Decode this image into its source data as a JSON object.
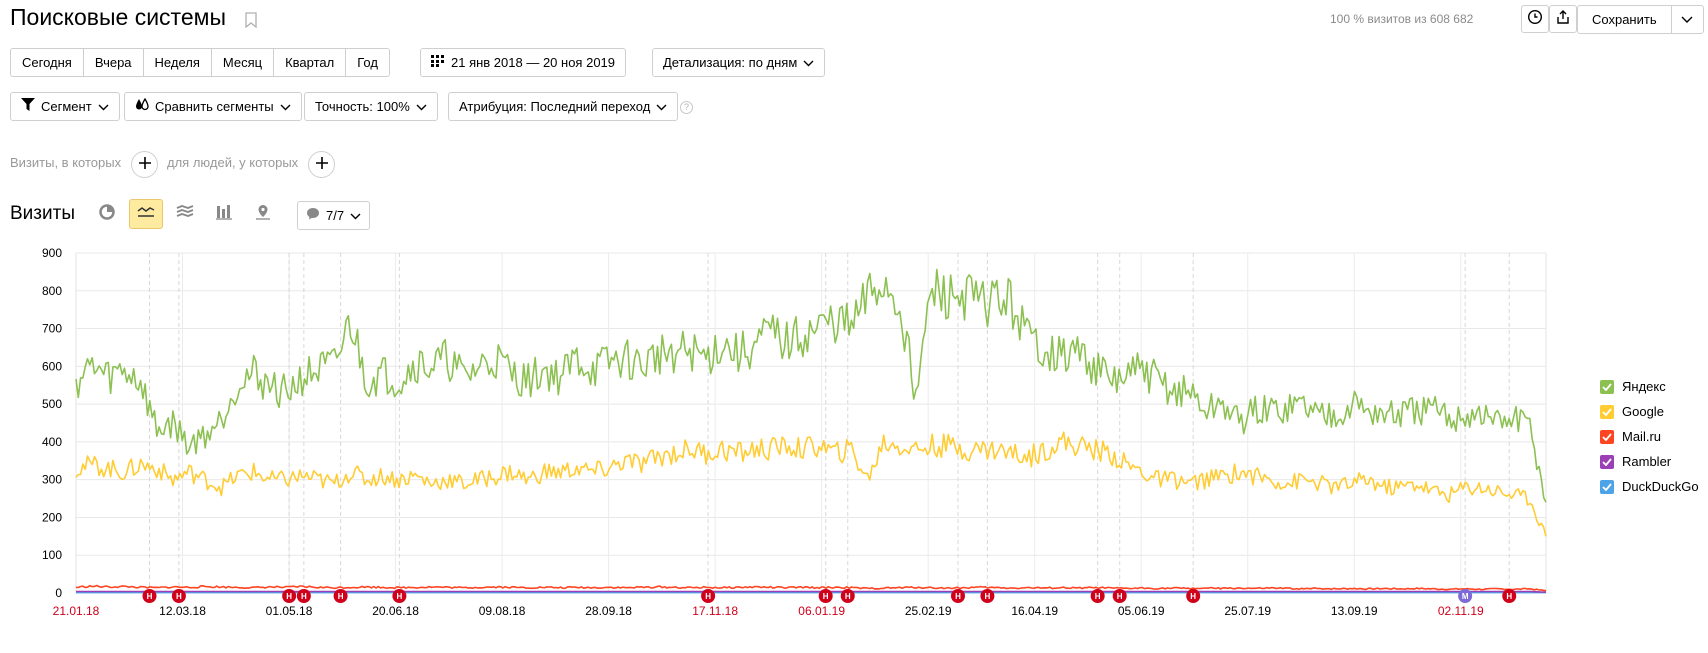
{
  "header": {
    "title": "Поисковые системы",
    "visits_info": "100 % визитов из 608 682",
    "save_label": "Сохранить"
  },
  "periods": [
    "Сегодня",
    "Вчера",
    "Неделя",
    "Месяц",
    "Квартал",
    "Год"
  ],
  "date_range": "21 янв 2018 — 20 ноя 2019",
  "detail": "Детализация: по дням",
  "filters": {
    "segment": "Сегмент",
    "compare": "Сравнить сегменты",
    "accuracy": "Точность: 100%",
    "attribution": "Атрибуция: Последний переход",
    "help": "?"
  },
  "conditions": {
    "visits_label": "Визиты, в которых",
    "people_label": "для людей, у которых"
  },
  "section": {
    "title": "Визиты",
    "notes_count": "7/7"
  },
  "colors": {
    "yandex": "#8cc152",
    "google": "#ffcc33",
    "mailru": "#ff4422",
    "rambler": "#9b3fb6",
    "duckduckgo": "#4da3e8",
    "holiday": "#d0021b"
  },
  "chart_data": {
    "type": "line",
    "ylim": [
      0,
      900
    ],
    "yticks": [
      0,
      100,
      200,
      300,
      400,
      500,
      600,
      700,
      800,
      900
    ],
    "xticks": [
      {
        "label": "21.01.18",
        "holiday": true
      },
      {
        "label": "12.03.18",
        "holiday": false
      },
      {
        "label": "01.05.18",
        "holiday": false
      },
      {
        "label": "20.06.18",
        "holiday": false
      },
      {
        "label": "09.08.18",
        "holiday": false
      },
      {
        "label": "28.09.18",
        "holiday": false
      },
      {
        "label": "17.11.18",
        "holiday": true
      },
      {
        "label": "06.01.19",
        "holiday": true
      },
      {
        "label": "25.02.19",
        "holiday": false
      },
      {
        "label": "16.04.19",
        "holiday": false
      },
      {
        "label": "05.06.19",
        "holiday": false
      },
      {
        "label": "25.07.19",
        "holiday": false
      },
      {
        "label": "13.09.19",
        "holiday": false
      },
      {
        "label": "02.11.19",
        "holiday": true
      }
    ],
    "series": [
      {
        "name": "Яндекс",
        "color": "#8cc152",
        "values": [
          560,
          600,
          570,
          590,
          560,
          430,
          450,
          390,
          420,
          460,
          560,
          580,
          550,
          530,
          570,
          590,
          600,
          720,
          560,
          580,
          560,
          610,
          600,
          620,
          570,
          600,
          620,
          580,
          560,
          590,
          570,
          620,
          590,
          610,
          620,
          600,
          630,
          640,
          640,
          620,
          660,
          630,
          650,
          690,
          660,
          680,
          700,
          720,
          700,
          780,
          820,
          760,
          530,
          800,
          780,
          790,
          760,
          780,
          760,
          670,
          650,
          620,
          640,
          600,
          560,
          570,
          590,
          560,
          530,
          530,
          480,
          500,
          450,
          480,
          480,
          490,
          500,
          470,
          480,
          500,
          480,
          470,
          470,
          480,
          480,
          460,
          470,
          470,
          450,
          460,
          440,
          240
        ]
      },
      {
        "name": "Google",
        "color": "#ffcc33",
        "values": [
          330,
          340,
          330,
          320,
          340,
          330,
          300,
          320,
          300,
          280,
          310,
          320,
          300,
          300,
          310,
          300,
          290,
          320,
          300,
          310,
          300,
          310,
          290,
          300,
          290,
          300,
          310,
          320,
          300,
          320,
          320,
          330,
          320,
          330,
          350,
          340,
          360,
          370,
          380,
          370,
          380,
          370,
          380,
          380,
          390,
          380,
          390,
          370,
          380,
          300,
          400,
          390,
          380,
          390,
          390,
          380,
          380,
          380,
          370,
          360,
          380,
          400,
          390,
          380,
          370,
          340,
          320,
          300,
          300,
          290,
          300,
          310,
          320,
          310,
          300,
          290,
          300,
          290,
          280,
          290,
          300,
          280,
          280,
          290,
          270,
          260,
          280,
          280,
          270,
          260,
          250,
          150
        ]
      },
      {
        "name": "Mail.ru",
        "color": "#ff4422",
        "values": [
          15,
          18,
          16,
          17,
          15,
          14,
          16,
          15,
          17,
          16,
          15,
          14,
          16,
          15,
          17,
          15,
          14,
          15,
          16,
          15,
          14,
          15,
          16,
          15,
          14,
          15,
          16,
          15,
          14,
          15,
          14,
          15,
          14,
          15,
          14,
          15,
          16,
          15,
          14,
          15,
          14,
          15,
          16,
          15,
          14,
          15,
          14,
          15,
          14,
          12,
          13,
          14,
          15,
          14,
          13,
          14,
          15,
          14,
          13,
          14,
          13,
          14,
          13,
          14,
          13,
          12,
          13,
          12,
          13,
          12,
          13,
          12,
          13,
          12,
          13,
          12,
          11,
          12,
          11,
          12,
          11,
          12,
          11,
          12,
          11,
          10,
          11,
          10,
          11,
          10,
          11,
          6
        ]
      },
      {
        "name": "Rambler",
        "color": "#9b3fb6",
        "values": [
          4,
          4,
          4,
          4,
          4,
          4,
          4,
          4,
          4,
          4,
          4,
          4,
          4,
          4,
          4,
          4,
          4,
          4,
          4,
          4,
          4,
          4,
          4,
          4,
          4,
          4,
          4,
          4,
          4,
          4,
          4,
          4,
          4,
          4,
          4,
          4,
          4,
          4,
          4,
          4,
          4,
          4,
          4,
          4,
          4,
          4,
          4,
          4,
          4,
          4,
          4,
          4,
          4,
          4,
          4,
          4,
          4,
          4,
          4,
          4,
          4,
          4,
          4,
          4,
          4,
          4,
          4,
          4,
          4,
          4,
          4,
          4,
          4,
          4,
          4,
          4,
          4,
          4,
          4,
          4,
          4,
          4,
          4,
          4,
          4,
          4,
          4,
          4,
          4,
          4,
          4,
          2
        ]
      },
      {
        "name": "DuckDuckGo",
        "color": "#4da3e8",
        "values": [
          1,
          1,
          1,
          1,
          1,
          1,
          1,
          1,
          1,
          1,
          1,
          1,
          1,
          1,
          1,
          1,
          1,
          1,
          1,
          1,
          1,
          1,
          1,
          1,
          1,
          1,
          1,
          1,
          1,
          1,
          1,
          1,
          1,
          1,
          1,
          1,
          1,
          1,
          1,
          1,
          1,
          1,
          1,
          1,
          1,
          1,
          1,
          1,
          1,
          1,
          1,
          1,
          1,
          1,
          1,
          1,
          1,
          1,
          1,
          1,
          1,
          1,
          1,
          1,
          1,
          1,
          1,
          1,
          1,
          1,
          1,
          1,
          1,
          1,
          1,
          1,
          1,
          1,
          1,
          1,
          1,
          1,
          1,
          1,
          1,
          1,
          1,
          1,
          1,
          1,
          1,
          1
        ]
      }
    ],
    "note_markers": [
      {
        "pos": 0.05,
        "label": "Н",
        "kind": "holiday"
      },
      {
        "pos": 0.07,
        "label": "Н",
        "kind": "holiday"
      },
      {
        "pos": 0.145,
        "label": "Н",
        "kind": "holiday"
      },
      {
        "pos": 0.155,
        "label": "Н",
        "kind": "holiday"
      },
      {
        "pos": 0.18,
        "label": "Н",
        "kind": "holiday"
      },
      {
        "pos": 0.22,
        "label": "Н",
        "kind": "holiday"
      },
      {
        "pos": 0.43,
        "label": "Н",
        "kind": "holiday"
      },
      {
        "pos": 0.51,
        "label": "Н",
        "kind": "holiday"
      },
      {
        "pos": 0.525,
        "label": "Н",
        "kind": "holiday"
      },
      {
        "pos": 0.6,
        "label": "Н",
        "kind": "holiday"
      },
      {
        "pos": 0.62,
        "label": "Н",
        "kind": "holiday"
      },
      {
        "pos": 0.695,
        "label": "Н",
        "kind": "holiday"
      },
      {
        "pos": 0.71,
        "label": "Н",
        "kind": "holiday"
      },
      {
        "pos": 0.76,
        "label": "Н",
        "kind": "holiday"
      },
      {
        "pos": 0.945,
        "label": "М",
        "kind": "other"
      },
      {
        "pos": 0.975,
        "label": "Н",
        "kind": "holiday"
      }
    ],
    "legend_position": "right"
  }
}
